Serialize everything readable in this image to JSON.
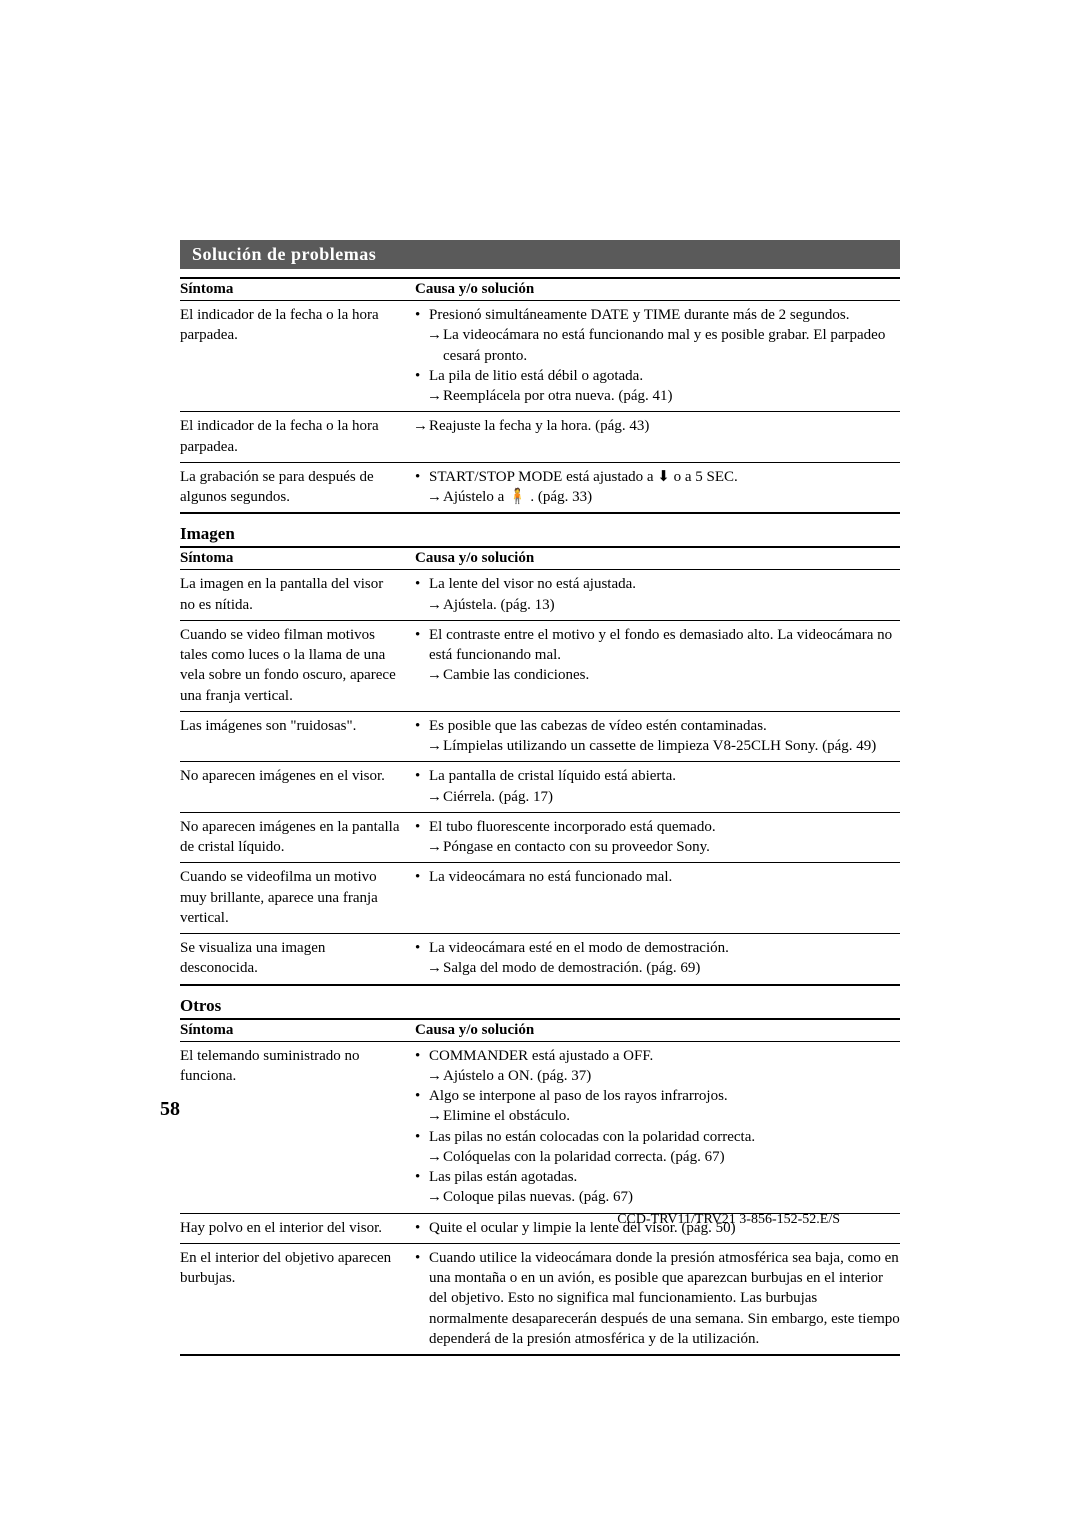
{
  "title": "Solución de problemas",
  "subsections": {
    "imagen": "Imagen",
    "otros": "Otros"
  },
  "headers": {
    "symptom": "Síntoma",
    "solution": "Causa y/o solución"
  },
  "section1": [
    {
      "symptom": "El indicador de la fecha o la hora parpadea.",
      "items": [
        {
          "type": "bullet",
          "text": "Presionó simultáneamente DATE y TIME durante más de 2 segundos."
        },
        {
          "type": "arrow",
          "text": "La videocámara no está funcionando mal y es posible grabar. El parpadeo cesará pronto."
        },
        {
          "type": "bullet",
          "text": "La pila de litio está débil o agotada."
        },
        {
          "type": "arrow",
          "text": "Reemplácela por otra nueva. (pág. 41)"
        }
      ]
    },
    {
      "symptom": "El indicador de la fecha o la hora parpadea.",
      "items": [
        {
          "type": "arrow-only",
          "text": "Reajuste la fecha y la hora. (pág. 43)"
        }
      ]
    },
    {
      "symptom": "La grabación se para después de algunos segundos.",
      "items": [
        {
          "type": "bullet",
          "text": "START/STOP MODE está ajustado a  ⬇  o a 5 SEC."
        },
        {
          "type": "arrow",
          "text": "Ajústelo a  🧍 .  (pág. 33)"
        }
      ]
    }
  ],
  "section2": [
    {
      "symptom": "La imagen en la pantalla del visor no es nítida.",
      "items": [
        {
          "type": "bullet",
          "text": "La lente del visor no está ajustada."
        },
        {
          "type": "arrow",
          "text": "Ajústela. (pág. 13)"
        }
      ]
    },
    {
      "symptom": "Cuando se video filman motivos tales como luces o la llama de una vela sobre un fondo oscuro, aparece una franja vertical.",
      "items": [
        {
          "type": "bullet",
          "text": "El contraste entre el motivo y el fondo es demasiado alto. La videocámara no está funcionando mal."
        },
        {
          "type": "arrow",
          "text": "Cambie las condiciones."
        }
      ]
    },
    {
      "symptom": "Las imágenes son \"ruidosas\".",
      "items": [
        {
          "type": "bullet",
          "text": "Es posible que las cabezas de vídeo estén contaminadas."
        },
        {
          "type": "arrow",
          "text": "Límpielas utilizando un cassette de limpieza V8-25CLH Sony. (pág. 49)"
        }
      ]
    },
    {
      "symptom": "No aparecen imágenes en el visor.",
      "items": [
        {
          "type": "bullet",
          "text": "La pantalla de cristal líquido está abierta."
        },
        {
          "type": "arrow",
          "text": "Ciérrela.  (pág. 17)"
        }
      ]
    },
    {
      "symptom": "No aparecen imágenes en la pantalla de cristal líquido.",
      "items": [
        {
          "type": "bullet",
          "text": "El tubo fluorescente incorporado está quemado."
        },
        {
          "type": "arrow",
          "text": "Póngase en contacto con su proveedor Sony."
        }
      ]
    },
    {
      "symptom": "Cuando se videofilma un motivo muy brillante, aparece una franja vertical.",
      "items": [
        {
          "type": "bullet",
          "text": "La videocámara no está funcionado mal."
        }
      ]
    },
    {
      "symptom": "Se visualiza una imagen desconocida.",
      "items": [
        {
          "type": "bullet",
          "text": "La videocámara esté en el modo de demostración."
        },
        {
          "type": "arrow",
          "text": "Salga del modo de demostración. (pág. 69)"
        }
      ]
    }
  ],
  "section3": [
    {
      "symptom": "El telemando suministrado no funciona.",
      "items": [
        {
          "type": "bullet",
          "text": "COMMANDER está ajustado a OFF."
        },
        {
          "type": "arrow",
          "text": "Ajústelo a ON. (pág. 37)"
        },
        {
          "type": "bullet",
          "text": "Algo se interpone al paso de los rayos infrarrojos."
        },
        {
          "type": "arrow",
          "text": "Elimine el obstáculo."
        },
        {
          "type": "bullet",
          "text": "Las pilas no están colocadas con la polaridad correcta."
        },
        {
          "type": "arrow",
          "text": "Colóquelas con la polaridad correcta. (pág. 67)"
        },
        {
          "type": "bullet",
          "text": "Las pilas están agotadas."
        },
        {
          "type": "arrow",
          "text": "Coloque pilas nuevas. (pág. 67)"
        }
      ]
    },
    {
      "symptom": "Hay polvo en el interior del visor.",
      "items": [
        {
          "type": "bullet",
          "text": "Quite el ocular y limpie la lente del visor. (pág. 50)"
        }
      ]
    },
    {
      "symptom": "En el interior del objetivo aparecen burbujas.",
      "items": [
        {
          "type": "bullet",
          "text": "Cuando utilice la videocámara donde la presión atmosférica sea baja, como en una montaña o en un avión, es posible que aparezcan burbujas en el interior del objetivo.  Esto no significa mal funcionamiento.  Las burbujas normalmente desaparecerán después de una semana.  Sin embargo, este tiempo dependerá de la presión atmosférica y de la utilización."
        }
      ]
    }
  ],
  "pagenum": "58",
  "footer": "CCD-TRV11/TRV21  3-856-152-52.E/S"
}
